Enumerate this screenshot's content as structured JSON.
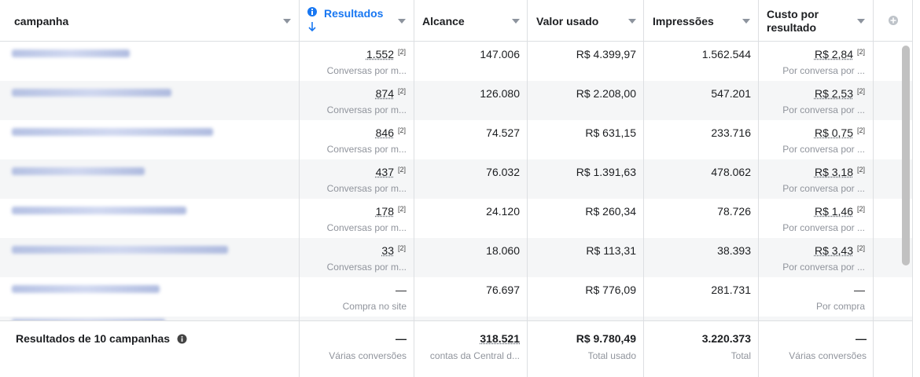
{
  "header": {
    "columns": [
      "campanha",
      "Resultados",
      "Alcance",
      "Valor usado",
      "Impressões",
      "Custo por resultado"
    ]
  },
  "rows": [
    {
      "results": "1.552",
      "results_note": "[2]",
      "results_sub": "Conversas por m...",
      "reach": "147.006",
      "spent": "R$ 4.399,97",
      "impressions": "1.562.544",
      "cost": "R$ 2,84",
      "cost_note": "[2]",
      "cost_sub": "Por conversa por ..."
    },
    {
      "results": "874",
      "results_note": "[2]",
      "results_sub": "Conversas por m...",
      "reach": "126.080",
      "spent": "R$ 2.208,00",
      "impressions": "547.201",
      "cost": "R$ 2,53",
      "cost_note": "[2]",
      "cost_sub": "Por conversa por ..."
    },
    {
      "results": "846",
      "results_note": "[2]",
      "results_sub": "Conversas por m...",
      "reach": "74.527",
      "spent": "R$ 631,15",
      "impressions": "233.716",
      "cost": "R$ 0,75",
      "cost_note": "[2]",
      "cost_sub": "Por conversa por ..."
    },
    {
      "results": "437",
      "results_note": "[2]",
      "results_sub": "Conversas por m...",
      "reach": "76.032",
      "spent": "R$ 1.391,63",
      "impressions": "478.062",
      "cost": "R$ 3,18",
      "cost_note": "[2]",
      "cost_sub": "Por conversa por ..."
    },
    {
      "results": "178",
      "results_note": "[2]",
      "results_sub": "Conversas por m...",
      "reach": "24.120",
      "spent": "R$ 260,34",
      "impressions": "78.726",
      "cost": "R$ 1,46",
      "cost_note": "[2]",
      "cost_sub": "Por conversa por ..."
    },
    {
      "results": "33",
      "results_note": "[2]",
      "results_sub": "Conversas por m...",
      "reach": "18.060",
      "spent": "R$ 113,31",
      "impressions": "38.393",
      "cost": "R$ 3,43",
      "cost_note": "[2]",
      "cost_sub": "Por conversa por ..."
    },
    {
      "results": "—",
      "results_sub": "Compra no site",
      "reach": "76.697",
      "spent": "R$ 776,09",
      "impressions": "281.731",
      "cost": "—",
      "cost_sub": "Por compra"
    }
  ],
  "footer": {
    "label": "Resultados de 10 campanhas",
    "results": "—",
    "results_sub": "Várias conversões",
    "reach": "318.521",
    "reach_sub": "contas da Central d...",
    "spent": "R$ 9.780,49",
    "spent_sub": "Total usado",
    "impressions": "3.220.373",
    "impressions_sub": "Total",
    "cost": "—",
    "cost_sub": "Várias conversões"
  }
}
